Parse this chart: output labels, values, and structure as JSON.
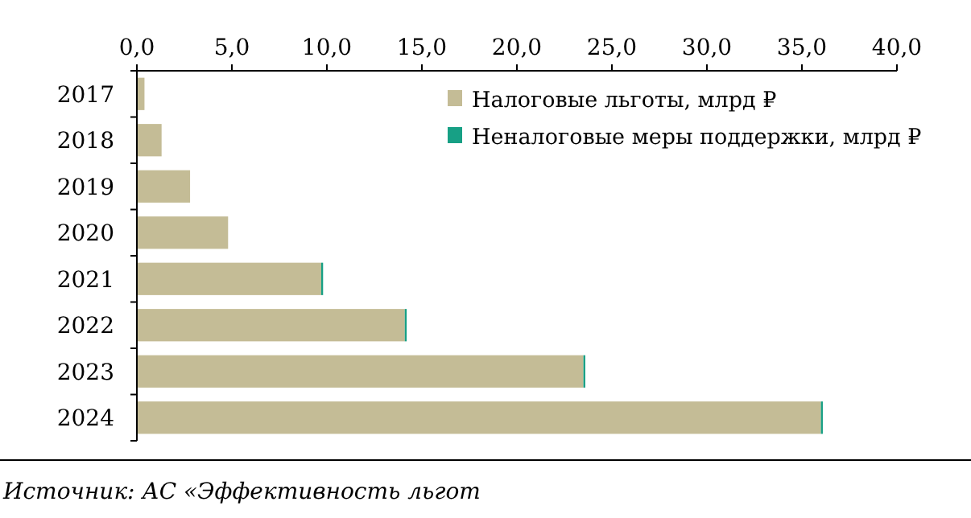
{
  "chart_data": {
    "type": "bar",
    "orientation": "horizontal",
    "stacked": true,
    "categories": [
      "2017",
      "2018",
      "2019",
      "2020",
      "2021",
      "2022",
      "2023",
      "2024"
    ],
    "series": [
      {
        "name": "Налоговые льготы, млрд ₽",
        "color": "#c4bc96",
        "values": [
          0.4,
          1.3,
          2.8,
          4.8,
          9.7,
          14.1,
          23.5,
          36.0
        ]
      },
      {
        "name": "Неналоговые меры поддержки, млрд ₽",
        "color": "#17a085",
        "values": [
          0,
          0,
          0,
          0,
          0.1,
          0.1,
          0.1,
          0.1
        ]
      }
    ],
    "xlim": [
      0,
      40
    ],
    "xticks": [
      {
        "value": 0,
        "label": "0,0"
      },
      {
        "value": 5,
        "label": "5,0"
      },
      {
        "value": 10,
        "label": "10,0"
      },
      {
        "value": 15,
        "label": "15,0"
      },
      {
        "value": 20,
        "label": "20,0"
      },
      {
        "value": 25,
        "label": "25,0"
      },
      {
        "value": 30,
        "label": "30,0"
      },
      {
        "value": 35,
        "label": "35,0"
      },
      {
        "value": 40,
        "label": "40,0"
      }
    ],
    "grid": false,
    "legend": "top right",
    "annotations": [
      "Источник: АС «Эффективность льгот"
    ]
  }
}
